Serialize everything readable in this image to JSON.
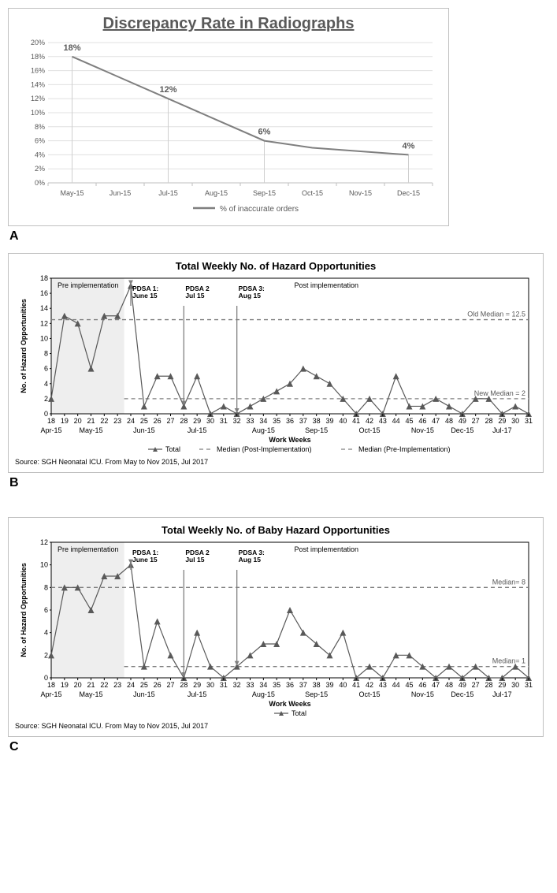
{
  "chartA": {
    "type": "line",
    "title": "Discrepancy Rate in Radiographs",
    "title_fontsize": 20,
    "categories": [
      "May-15",
      "Jun-15",
      "Jul-15",
      "Aug-15",
      "Sep-15",
      "Oct-15",
      "Nov-15",
      "Dec-15"
    ],
    "values": [
      18,
      15,
      12,
      9,
      6,
      5,
      4.5,
      4
    ],
    "labeled_points": [
      {
        "i": 0,
        "label": "18%"
      },
      {
        "i": 2,
        "label": "12%"
      },
      {
        "i": 4,
        "label": "6%"
      },
      {
        "i": 7,
        "label": "4%"
      }
    ],
    "line_color": "#7f7f7f",
    "line_width": 2.5,
    "ylim": [
      0,
      20
    ],
    "ytick_step": 2,
    "ytick_suffix": "%",
    "grid_color": "#e0e0e0",
    "background_color": "#ffffff",
    "legend_label": "% of inaccurate orders",
    "axis_color": "#bfbfbf",
    "label_fontsize": 11,
    "tick_fontsize": 10
  },
  "chartB": {
    "type": "line",
    "title": "Total Weekly No. of Hazard Opportunities",
    "xlabel": "Work Weeks",
    "ylabel": "No. of Hazard Opportunities",
    "x_ticks": [
      "18",
      "19",
      "20",
      "21",
      "22",
      "23",
      "24",
      "25",
      "26",
      "27",
      "28",
      "29",
      "30",
      "31",
      "32",
      "33",
      "34",
      "35",
      "36",
      "37",
      "38",
      "39",
      "40",
      "41",
      "42",
      "43",
      "44",
      "45",
      "46",
      "47",
      "48",
      "49",
      "27",
      "28",
      "29",
      "30",
      "31"
    ],
    "x_group_labels": [
      {
        "label": "Apr-15",
        "under_idx": 0
      },
      {
        "label": "May-15",
        "under_idx": 3
      },
      {
        "label": "Jun-15",
        "under_idx": 7
      },
      {
        "label": "Jul-15",
        "under_idx": 11
      },
      {
        "label": "Aug-15",
        "under_idx": 16
      },
      {
        "label": "Sep-15",
        "under_idx": 20
      },
      {
        "label": "Oct-15",
        "under_idx": 24
      },
      {
        "label": "Nov-15",
        "under_idx": 28
      },
      {
        "label": "Dec-15",
        "under_idx": 31
      },
      {
        "label": "Jul-17",
        "under_idx": 34
      }
    ],
    "values": [
      2,
      13,
      12,
      6,
      13,
      13,
      17,
      1,
      5,
      5,
      1,
      5,
      0,
      1,
      0,
      1,
      2,
      3,
      4,
      6,
      5,
      4,
      2,
      0,
      2,
      0,
      5,
      1,
      1,
      2,
      1,
      0,
      2,
      2,
      0,
      1,
      0
    ],
    "marker": "triangle",
    "marker_size": 4,
    "line_color": "#595959",
    "line_width": 1.2,
    "ylim": [
      0,
      18
    ],
    "ytick_step": 2,
    "phase_split_index": 6,
    "phase_labels": {
      "pre": "Pre implementation",
      "post": "Post implementation"
    },
    "old_median": 12.5,
    "old_median_label": "Old Median = 12.5",
    "new_median": 2,
    "new_median_label": "New Median = 2",
    "median_color": "#808080",
    "median_dash": "5,4",
    "annotations": [
      {
        "at_idx": 6,
        "label": "PDSA 1:\nJune 15"
      },
      {
        "at_idx": 10,
        "label": "PDSA 2\nJul 15"
      },
      {
        "at_idx": 14,
        "label": "PDSA 3:\nAug 15"
      }
    ],
    "legend": [
      "Total",
      "Median (Post-Implementation)",
      "Median (Pre-Implementation)"
    ],
    "source": "Source: SGH Neonatal ICU. From May to Nov 2015, Jul 2017",
    "background_color": "#ffffff",
    "phase_bg_color": "#eeeeee",
    "axis_color": "#000000"
  },
  "chartC": {
    "type": "line",
    "title": "Total Weekly No. of Baby Hazard Opportunities",
    "xlabel": "Work Weeks",
    "ylabel": "No. of Hazard Opportunities",
    "x_ticks": [
      "18",
      "19",
      "20",
      "21",
      "22",
      "23",
      "24",
      "25",
      "26",
      "27",
      "28",
      "29",
      "30",
      "31",
      "32",
      "33",
      "34",
      "35",
      "36",
      "37",
      "38",
      "39",
      "40",
      "41",
      "42",
      "43",
      "44",
      "45",
      "46",
      "47",
      "48",
      "49",
      "27",
      "28",
      "29",
      "30",
      "31"
    ],
    "x_group_labels": [
      {
        "label": "Apr-15",
        "under_idx": 0
      },
      {
        "label": "May-15",
        "under_idx": 3
      },
      {
        "label": "Jun-15",
        "under_idx": 7
      },
      {
        "label": "Jul-15",
        "under_idx": 11
      },
      {
        "label": "Aug-15",
        "under_idx": 16
      },
      {
        "label": "Sep-15",
        "under_idx": 20
      },
      {
        "label": "Oct-15",
        "under_idx": 24
      },
      {
        "label": "Nov-15",
        "under_idx": 28
      },
      {
        "label": "Dec-15",
        "under_idx": 31
      },
      {
        "label": "Jul-17",
        "under_idx": 34
      }
    ],
    "values": [
      2,
      8,
      8,
      6,
      9,
      9,
      10,
      1,
      5,
      2,
      0,
      4,
      1,
      0,
      1,
      2,
      3,
      3,
      6,
      4,
      3,
      2,
      4,
      0,
      1,
      0,
      2,
      2,
      1,
      0,
      1,
      0,
      1,
      0,
      0,
      1,
      0
    ],
    "marker": "triangle",
    "marker_size": 4,
    "line_color": "#595959",
    "line_width": 1.2,
    "ylim": [
      0,
      12
    ],
    "ytick_step": 2,
    "phase_split_index": 6,
    "phase_labels": {
      "pre": "Pre implementation",
      "post": "Post implementation"
    },
    "old_median": 8,
    "old_median_label": "Median= 8",
    "new_median": 1,
    "new_median_label": "Median= 1",
    "median_color": "#808080",
    "median_dash": "5,4",
    "annotations": [
      {
        "at_idx": 6,
        "label": "PDSA 1:\nJune 15"
      },
      {
        "at_idx": 10,
        "label": "PDSA 2\nJul 15"
      },
      {
        "at_idx": 14,
        "label": "PDSA 3:\nAug 15"
      }
    ],
    "legend": [
      "Total"
    ],
    "source": "Source: SGH Neonatal ICU. From May to Nov 2015, Jul 2017",
    "background_color": "#ffffff",
    "phase_bg_color": "#eeeeee",
    "axis_color": "#000000"
  },
  "panel_labels": {
    "a": "A",
    "b": "B",
    "c": "C"
  }
}
